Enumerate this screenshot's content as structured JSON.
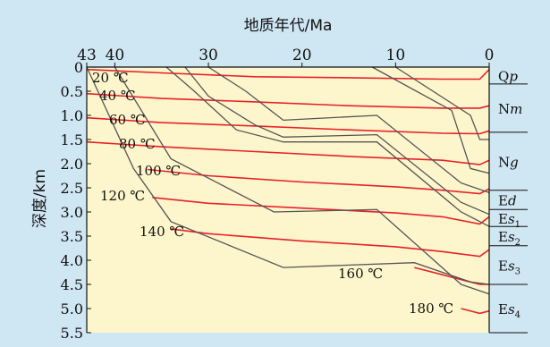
{
  "chart_data": {
    "type": "line",
    "xlabel": "地质年代/Ma",
    "ylabel": "深度/km",
    "xlim": [
      43,
      0
    ],
    "ylim": [
      0,
      5.5
    ],
    "x_ticks": [
      "43",
      "40",
      "30",
      "20",
      "10",
      "0"
    ],
    "x_tick_values": [
      43,
      40,
      30,
      20,
      10,
      0
    ],
    "y_ticks": [
      "0",
      "0.5",
      "1.0",
      "1.5",
      "2.0",
      "2.5",
      "3.0",
      "3.5",
      "4.0",
      "4.5",
      "5.0",
      "5.5"
    ],
    "y_tick_values": [
      0,
      0.5,
      1.0,
      1.5,
      2.0,
      2.5,
      3.0,
      3.5,
      4.0,
      4.5,
      5.0,
      5.5
    ],
    "colors": {
      "background": "#cfe6f3",
      "plot_area": "#fdf6cc",
      "isotherm": "#e8202a",
      "burial_curve": "#555555",
      "axis": "#111111"
    },
    "isotherms": [
      {
        "label": "20 ℃",
        "points": [
          [
            43,
            0.05
          ],
          [
            35,
            0.12
          ],
          [
            25,
            0.2
          ],
          [
            15,
            0.22
          ],
          [
            5,
            0.25
          ],
          [
            1,
            0.25
          ],
          [
            0,
            0.05
          ]
        ]
      },
      {
        "label": "40 ℃",
        "points": [
          [
            43,
            0.55
          ],
          [
            35,
            0.65
          ],
          [
            25,
            0.72
          ],
          [
            15,
            0.8
          ],
          [
            5,
            0.85
          ],
          [
            1,
            0.85
          ],
          [
            0,
            0.8
          ]
        ]
      },
      {
        "label": "60 ℃",
        "points": [
          [
            43,
            1.05
          ],
          [
            35,
            1.15
          ],
          [
            25,
            1.22
          ],
          [
            15,
            1.3
          ],
          [
            5,
            1.37
          ],
          [
            1,
            1.38
          ],
          [
            0,
            1.32
          ]
        ]
      },
      {
        "label": "80 ℃",
        "points": [
          [
            43,
            1.55
          ],
          [
            35,
            1.65
          ],
          [
            25,
            1.75
          ],
          [
            15,
            1.85
          ],
          [
            5,
            1.93
          ],
          [
            1,
            2.02
          ],
          [
            0,
            1.93
          ]
        ]
      },
      {
        "label": "100 ℃",
        "points": [
          [
            36.5,
            2.12
          ],
          [
            30,
            2.25
          ],
          [
            20,
            2.38
          ],
          [
            10,
            2.48
          ],
          [
            5,
            2.55
          ],
          [
            1,
            2.62
          ],
          [
            0,
            2.52
          ]
        ]
      },
      {
        "label": "120 ℃",
        "points": [
          [
            36,
            2.7
          ],
          [
            30,
            2.82
          ],
          [
            20,
            2.92
          ],
          [
            10,
            3.02
          ],
          [
            5,
            3.1
          ],
          [
            1,
            3.25
          ],
          [
            0,
            3.1
          ]
        ]
      },
      {
        "label": "140 ℃",
        "points": [
          [
            34,
            3.35
          ],
          [
            30,
            3.45
          ],
          [
            20,
            3.6
          ],
          [
            10,
            3.72
          ],
          [
            5,
            3.82
          ],
          [
            1,
            3.92
          ],
          [
            0,
            3.78
          ]
        ]
      },
      {
        "label": "160 ℃",
        "points": [
          [
            8,
            4.15
          ],
          [
            5,
            4.3
          ],
          [
            2,
            4.45
          ],
          [
            1,
            4.5
          ],
          [
            0,
            4.5
          ]
        ]
      },
      {
        "label": "180 ℃",
        "points": [
          [
            3,
            5.0
          ],
          [
            1,
            5.1
          ],
          [
            0,
            5.05
          ]
        ]
      }
    ],
    "burial_curves": [
      {
        "points": [
          [
            43,
            0
          ],
          [
            38,
            2.1
          ],
          [
            34,
            3.2
          ],
          [
            22,
            4.15
          ],
          [
            8,
            4.05
          ],
          [
            2,
            4.45
          ],
          [
            0,
            4.5
          ]
        ]
      },
      {
        "points": [
          [
            40,
            0
          ],
          [
            34,
            1.9
          ],
          [
            29,
            2.4
          ],
          [
            23,
            3.0
          ],
          [
            12,
            2.95
          ],
          [
            3,
            4.5
          ],
          [
            0,
            4.7
          ]
        ]
      },
      {
        "points": [
          [
            34.5,
            0
          ],
          [
            31.5,
            0.5
          ],
          [
            27,
            1.3
          ],
          [
            22,
            1.55
          ],
          [
            12,
            1.55
          ],
          [
            3,
            3.0
          ],
          [
            0,
            3.3
          ]
        ]
      },
      {
        "points": [
          [
            32.5,
            0
          ],
          [
            30,
            0.6
          ],
          [
            25,
            1.2
          ],
          [
            22,
            1.45
          ],
          [
            12,
            1.4
          ],
          [
            3,
            2.8
          ],
          [
            0,
            3.05
          ]
        ]
      },
      {
        "points": [
          [
            30,
            0
          ],
          [
            26,
            0.5
          ],
          [
            22,
            1.1
          ],
          [
            12,
            1.0
          ],
          [
            3,
            2.4
          ],
          [
            0,
            2.6
          ]
        ]
      },
      {
        "points": [
          [
            12.5,
            0
          ],
          [
            4,
            0.9
          ],
          [
            2,
            2.1
          ],
          [
            0,
            2.2
          ]
        ]
      },
      {
        "points": [
          [
            10,
            0
          ],
          [
            2,
            1.0
          ],
          [
            1,
            1.5
          ],
          [
            0,
            1.5
          ]
        ]
      }
    ],
    "strata": [
      {
        "name": "Q",
        "sub": "",
        "italic": "p",
        "from": 0,
        "to": 0.35
      },
      {
        "name": "N",
        "sub": "",
        "italic": "m",
        "from": 0.35,
        "to": 1.35
      },
      {
        "name": "N",
        "sub": "",
        "italic": "g",
        "from": 1.35,
        "to": 2.55
      },
      {
        "name": "E",
        "sub": "",
        "italic": "d",
        "from": 2.55,
        "to": 2.95
      },
      {
        "name": "E",
        "sub": "1",
        "italic": "s",
        "from": 2.95,
        "to": 3.3
      },
      {
        "name": "E",
        "sub": "2",
        "italic": "s",
        "from": 3.3,
        "to": 3.7
      },
      {
        "name": "E",
        "sub": "3",
        "italic": "s",
        "from": 3.7,
        "to": 4.5
      },
      {
        "name": "E",
        "sub": "4",
        "italic": "s",
        "from": 4.5,
        "to": 5.5
      }
    ]
  }
}
